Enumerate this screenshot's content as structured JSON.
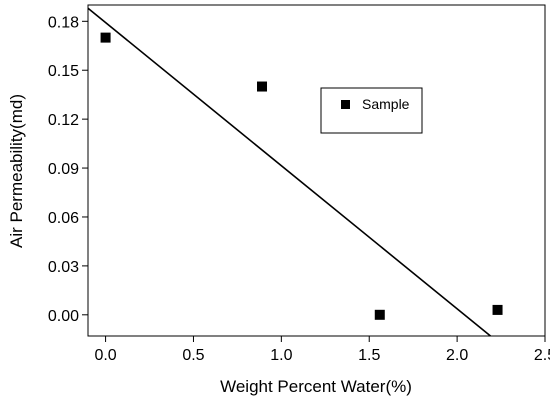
{
  "chart_data": {
    "type": "scatter",
    "xlabel": "Weight Percent Water(%)",
    "ylabel": "Air Permeability(md)",
    "xlim": [
      -0.1,
      2.5
    ],
    "ylim": [
      -0.013,
      0.19
    ],
    "x_ticks": [
      0.0,
      0.5,
      1.0,
      1.5,
      2.0,
      2.5
    ],
    "x_tick_labels": [
      "0.0",
      "0.5",
      "1.0",
      "1.5",
      "2.0",
      "2.5"
    ],
    "y_ticks": [
      0.0,
      0.03,
      0.06,
      0.09,
      0.12,
      0.15,
      0.18
    ],
    "y_tick_labels": [
      "0.00",
      "0.03",
      "0.06",
      "0.09",
      "0.12",
      "0.15",
      "0.18"
    ],
    "grid": false,
    "legend_position": "top-right",
    "series": [
      {
        "name": "Sample",
        "marker": "square",
        "points": [
          {
            "x": 0.0,
            "y": 0.17
          },
          {
            "x": 0.89,
            "y": 0.14
          },
          {
            "x": 1.56,
            "y": 0.0
          },
          {
            "x": 2.23,
            "y": 0.003
          }
        ]
      }
    ],
    "fit_line": {
      "points": [
        {
          "x": -0.1,
          "y": 0.188
        },
        {
          "x": 2.19,
          "y": -0.013
        }
      ]
    },
    "colors": {
      "marker": "#000000",
      "line": "#000000"
    }
  }
}
